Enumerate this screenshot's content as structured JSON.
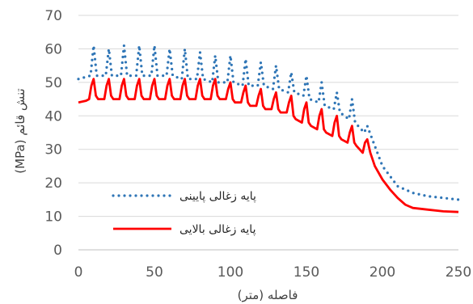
{
  "chart_data": {
    "type": "line",
    "xlabel": "فاصله (متر)",
    "ylabel": "تنش قائم (MPa)",
    "xlim": [
      0,
      250
    ],
    "ylim": [
      0,
      70
    ],
    "x_ticks": [
      0,
      50,
      100,
      150,
      200,
      250
    ],
    "y_ticks": [
      0,
      10,
      20,
      30,
      40,
      50,
      60,
      70
    ],
    "grid": "horizontal",
    "legend_position": "bottom-left",
    "series": [
      {
        "name": "پایه زغالی پایینی",
        "color": "#2E75B6",
        "style": "dotted",
        "x": [
          0,
          8,
          10,
          12,
          18,
          20,
          22,
          28,
          30,
          32,
          38,
          40,
          42,
          48,
          50,
          52,
          58,
          60,
          62,
          68,
          70,
          72,
          78,
          80,
          82,
          88,
          90,
          92,
          98,
          100,
          102,
          108,
          110,
          112,
          118,
          120,
          122,
          128,
          130,
          132,
          138,
          140,
          142,
          148,
          150,
          152,
          158,
          160,
          162,
          168,
          170,
          172,
          178,
          180,
          182,
          188,
          190,
          195,
          200,
          210,
          220,
          230,
          240,
          250
        ],
        "y": [
          51,
          52,
          61,
          52,
          52,
          60,
          52,
          52,
          61,
          52,
          52,
          61,
          52,
          52,
          61,
          52,
          52,
          60,
          52,
          51,
          60,
          51,
          51,
          59,
          51,
          50,
          58,
          50,
          50,
          58,
          50,
          49,
          57,
          49,
          49,
          56,
          49,
          48,
          55,
          48,
          47,
          53,
          47,
          46,
          52,
          45,
          44,
          50,
          43,
          42,
          47,
          41,
          39,
          45,
          38,
          35,
          37,
          31,
          25,
          19,
          17,
          16,
          15.5,
          15
        ]
      },
      {
        "name": "پایه زغالی بالایی",
        "color": "#FF0000",
        "style": "solid",
        "x": [
          0,
          5,
          7,
          8.5,
          10,
          11.5,
          13,
          17,
          18.5,
          20,
          21.5,
          23,
          27,
          28.5,
          30,
          31.5,
          33,
          37,
          38.5,
          40,
          41.5,
          43,
          47,
          48.5,
          50,
          51.5,
          53,
          57,
          58.5,
          60,
          61.5,
          63,
          67,
          68.5,
          70,
          71.5,
          73,
          77,
          78.5,
          80,
          81.5,
          83,
          87,
          88.5,
          90,
          91.5,
          93,
          97,
          98.5,
          100,
          101.5,
          103,
          107,
          108.5,
          110,
          111.5,
          113,
          117,
          118.5,
          120,
          121.5,
          123,
          127,
          128.5,
          130,
          131.5,
          133,
          137,
          138.5,
          140,
          141.5,
          143,
          147,
          148.5,
          150,
          151.5,
          153,
          157,
          158.5,
          160,
          161.5,
          163,
          167,
          168.5,
          170,
          171.5,
          173,
          177,
          178.5,
          180,
          181.5,
          183,
          187,
          188.5,
          190,
          192,
          195,
          200,
          205,
          210,
          215,
          220,
          230,
          240,
          250
        ],
        "y": [
          44,
          44.5,
          45,
          49,
          51,
          46,
          45,
          45,
          49,
          51,
          46,
          45,
          45,
          49,
          51,
          46,
          45,
          45,
          49,
          51,
          46,
          45,
          45,
          49,
          51,
          46,
          45,
          45,
          49,
          51,
          46,
          45,
          45,
          49,
          51,
          46,
          45,
          45,
          49,
          51,
          46,
          45,
          45,
          49,
          51,
          46,
          45,
          45,
          48,
          50,
          45,
          44,
          44,
          47,
          49,
          44,
          43,
          43,
          46,
          48,
          43,
          42,
          42,
          45,
          47,
          42,
          41,
          41,
          44,
          46,
          40,
          39,
          38,
          42,
          44,
          38,
          37,
          36,
          40,
          42,
          36,
          35,
          34,
          38,
          40,
          34,
          33,
          32,
          35,
          37,
          32,
          31,
          29,
          32,
          33,
          29,
          25,
          21,
          18,
          15.5,
          13.5,
          12.5,
          12,
          11.5,
          11.3
        ]
      }
    ]
  }
}
